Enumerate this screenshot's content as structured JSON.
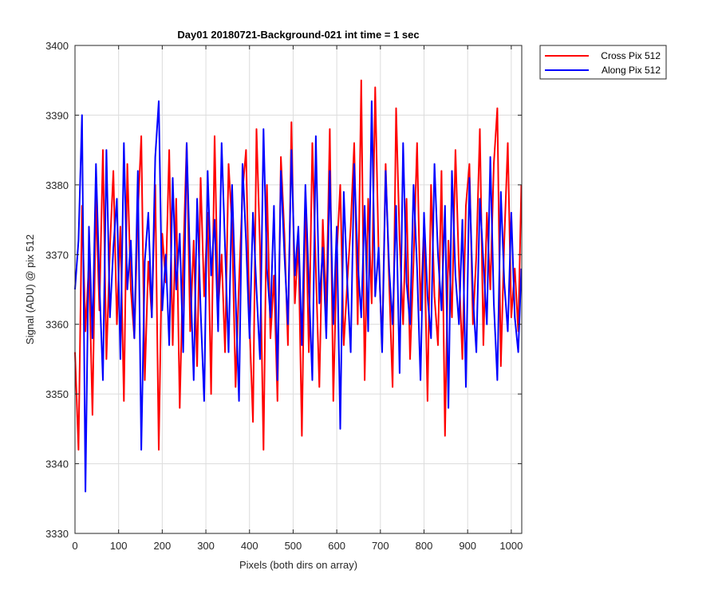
{
  "chart_data": {
    "type": "line",
    "title": "Day01 20180721-Background-021 int time = 1 sec",
    "xlabel": "Pixels (both dirs on array)",
    "ylabel": "Signal (ADU) @ pix 512",
    "xlim": [
      0,
      1024
    ],
    "ylim": [
      3330,
      3400
    ],
    "xticks": [
      0,
      100,
      200,
      300,
      400,
      500,
      600,
      700,
      800,
      900,
      1000
    ],
    "yticks": [
      3330,
      3340,
      3350,
      3360,
      3370,
      3380,
      3390,
      3400
    ],
    "grid": true,
    "legend_position": "outside-top-right",
    "colors": {
      "cross": "#ff0000",
      "along": "#0000ff",
      "grid": "#dcdcdc",
      "axis": "#262626"
    },
    "x": [
      0,
      8,
      16,
      24,
      32,
      40,
      48,
      56,
      64,
      72,
      80,
      88,
      96,
      104,
      112,
      120,
      128,
      136,
      144,
      152,
      160,
      168,
      176,
      184,
      192,
      200,
      208,
      216,
      224,
      232,
      240,
      248,
      256,
      264,
      272,
      280,
      288,
      296,
      304,
      312,
      320,
      328,
      336,
      344,
      352,
      360,
      368,
      376,
      384,
      392,
      400,
      408,
      416,
      424,
      432,
      440,
      448,
      456,
      464,
      472,
      480,
      488,
      496,
      504,
      512,
      520,
      528,
      536,
      544,
      552,
      560,
      568,
      576,
      584,
      592,
      600,
      608,
      616,
      624,
      632,
      640,
      648,
      656,
      664,
      672,
      680,
      688,
      696,
      704,
      712,
      720,
      728,
      736,
      744,
      752,
      760,
      768,
      776,
      784,
      792,
      800,
      808,
      816,
      824,
      832,
      840,
      848,
      856,
      864,
      872,
      880,
      888,
      896,
      904,
      912,
      920,
      928,
      936,
      944,
      952,
      960,
      968,
      976,
      984,
      992,
      1000,
      1008,
      1016,
      1023
    ],
    "series": [
      {
        "name": "Cross Pix 512",
        "color": "#ff0000",
        "values": [
          3356,
          3342,
          3377,
          3359,
          3369,
          3347,
          3378,
          3362,
          3385,
          3355,
          3371,
          3382,
          3360,
          3374,
          3349,
          3383,
          3365,
          3358,
          3376,
          3387,
          3352,
          3369,
          3361,
          3380,
          3342,
          3373,
          3366,
          3385,
          3357,
          3378,
          3348,
          3369,
          3386,
          3359,
          3372,
          3354,
          3381,
          3364,
          3376,
          3350,
          3387,
          3362,
          3370,
          3356,
          3383,
          3374,
          3351,
          3366,
          3379,
          3385,
          3360,
          3346,
          3388,
          3371,
          3342,
          3380,
          3358,
          3367,
          3349,
          3384,
          3373,
          3357,
          3389,
          3363,
          3372,
          3344,
          3379,
          3356,
          3386,
          3368,
          3351,
          3375,
          3362,
          3388,
          3349,
          3370,
          3380,
          3357,
          3366,
          3374,
          3386,
          3360,
          3395,
          3352,
          3378,
          3363,
          3394,
          3370,
          3357,
          3383,
          3366,
          3351,
          3391,
          3372,
          3360,
          3378,
          3355,
          3369,
          3386,
          3362,
          3374,
          3349,
          3380,
          3364,
          3357,
          3382,
          3344,
          3372,
          3361,
          3385,
          3368,
          3355,
          3377,
          3383,
          3360,
          3370,
          3388,
          3357,
          3376,
          3365,
          3383,
          3391,
          3354,
          3372,
          3386,
          3361,
          3368,
          3359,
          3380
        ]
      },
      {
        "name": "Along Pix 512",
        "color": "#0000ff",
        "values": [
          3365,
          3372,
          3390,
          3336,
          3374,
          3358,
          3383,
          3366,
          3352,
          3385,
          3361,
          3371,
          3378,
          3355,
          3386,
          3365,
          3372,
          3358,
          3382,
          3342,
          3369,
          3376,
          3361,
          3384,
          3392,
          3362,
          3370,
          3357,
          3381,
          3365,
          3373,
          3356,
          3386,
          3368,
          3352,
          3378,
          3362,
          3349,
          3382,
          3367,
          3375,
          3359,
          3386,
          3371,
          3356,
          3380,
          3364,
          3349,
          3383,
          3372,
          3358,
          3376,
          3365,
          3355,
          3388,
          3368,
          3361,
          3377,
          3352,
          3382,
          3370,
          3360,
          3385,
          3367,
          3374,
          3357,
          3380,
          3366,
          3352,
          3387,
          3363,
          3371,
          3358,
          3382,
          3360,
          3374,
          3345,
          3379,
          3366,
          3356,
          3383,
          3369,
          3361,
          3377,
          3359,
          3392,
          3364,
          3371,
          3356,
          3382,
          3368,
          3360,
          3377,
          3353,
          3386,
          3366,
          3360,
          3380,
          3368,
          3352,
          3376,
          3364,
          3358,
          3383,
          3370,
          3362,
          3377,
          3348,
          3382,
          3367,
          3360,
          3375,
          3351,
          3381,
          3364,
          3356,
          3378,
          3369,
          3360,
          3384,
          3363,
          3352,
          3379,
          3366,
          3359,
          3376,
          3361,
          3356,
          3368
        ]
      }
    ]
  }
}
